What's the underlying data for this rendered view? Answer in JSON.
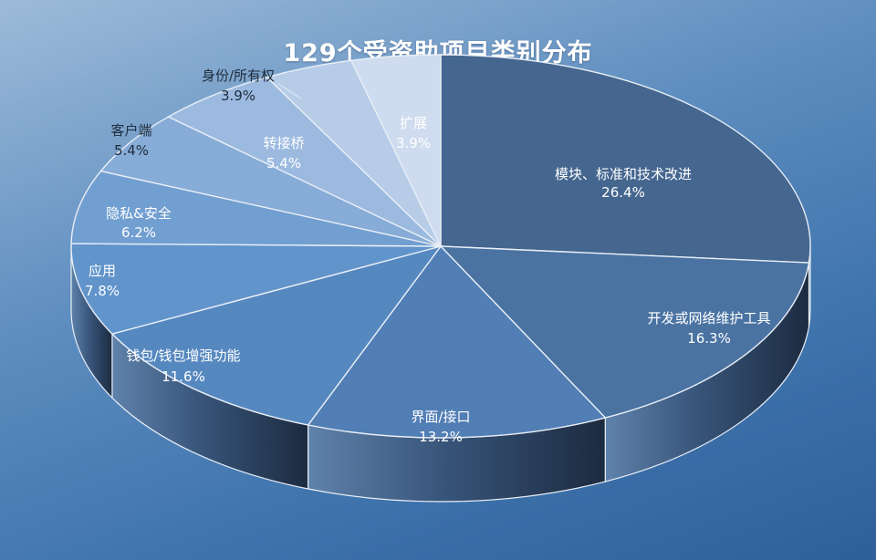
{
  "title": "129个受资助项目类别分布",
  "colors": {
    "top": "#44668f",
    "wall_light": "#3c5a80",
    "wall_dark": "#1e2f47",
    "edge": "#e8eef6"
  },
  "chart_data": {
    "type": "pie",
    "title": "129个受资助项目类别分布",
    "slices": [
      {
        "label": "模块、标准和技术改进",
        "value": 26.4,
        "display": "26.4%",
        "color": "#44668f"
      },
      {
        "label": "开发或网络维护工具",
        "value": 16.3,
        "display": "16.3%",
        "color": "#4a73a2"
      },
      {
        "label": "界面/接口",
        "value": 13.2,
        "display": "13.2%",
        "color": "#517eb4"
      },
      {
        "label": "钱包/钱包增强功能",
        "value": 11.6,
        "display": "11.6%",
        "color": "#5688c0"
      },
      {
        "label": "应用",
        "value": 7.8,
        "display": "7.8%",
        "color": "#6194cb"
      },
      {
        "label": "隐私&安全",
        "value": 6.2,
        "display": "6.2%",
        "color": "#729fd1"
      },
      {
        "label": "客户端",
        "value": 5.4,
        "display": "5.4%",
        "color": "#86acd7"
      },
      {
        "label": "转接桥",
        "value": 5.4,
        "display": "5.4%",
        "color": "#9cbadf"
      },
      {
        "label": "身份/所有权",
        "value": 3.9,
        "display": "3.9%",
        "color": "#b6cce7"
      },
      {
        "label": "扩展",
        "value": 3.9,
        "display": "3.9%",
        "color": "#cfdcef"
      }
    ]
  }
}
